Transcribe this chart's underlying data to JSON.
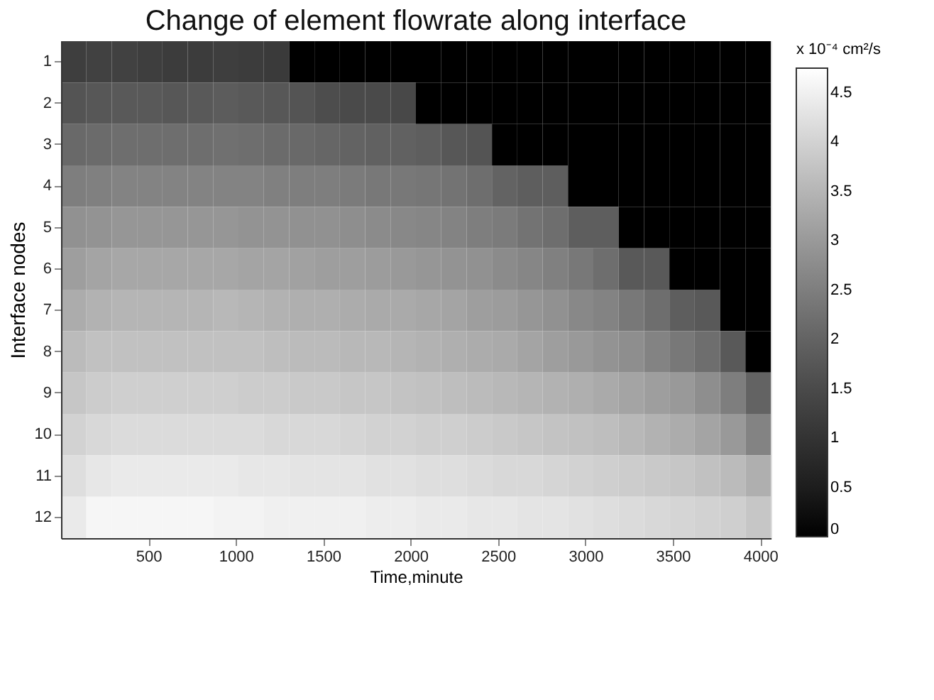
{
  "chart_data": {
    "type": "heatmap",
    "title": "Change of element flowrate along interface",
    "xlabel": "Time,minute",
    "ylabel": "Interface nodes",
    "clabel": "x 10⁻⁴ cm²/s",
    "x": [
      72.5,
      217.5,
      362.5,
      507.5,
      652.5,
      797.5,
      942.5,
      1087.5,
      1232.5,
      1377.5,
      1522.5,
      1667.5,
      1812.5,
      1957.5,
      2102.5,
      2247.5,
      2392.5,
      2537.5,
      2682.5,
      2827.5,
      2972.5,
      3117.5,
      3262.5,
      3407.5,
      3552.5,
      3697.5,
      3842.5,
      3987.5
    ],
    "xlim": [
      0,
      4060
    ],
    "xticks": [
      500,
      1000,
      1500,
      2000,
      2500,
      3000,
      3500,
      4000
    ],
    "y_categories": [
      "1",
      "2",
      "3",
      "4",
      "5",
      "6",
      "7",
      "8",
      "9",
      "10",
      "11",
      "12"
    ],
    "clim": [
      0,
      4.75
    ],
    "cticks": [
      0,
      0.5,
      1,
      1.5,
      2,
      2.5,
      3,
      3.5,
      4,
      4.5
    ],
    "grid": false,
    "cells": [
      [
        1.25,
        1.3,
        1.3,
        1.25,
        1.2,
        1.2,
        1.25,
        1.2,
        1.15,
        0,
        0,
        0,
        0,
        0,
        0,
        0,
        0,
        0,
        0,
        0,
        0,
        0,
        0,
        0,
        0,
        0,
        0,
        0
      ],
      [
        1.7,
        1.75,
        1.8,
        1.8,
        1.75,
        1.8,
        1.85,
        1.8,
        1.75,
        1.7,
        1.55,
        1.5,
        1.5,
        1.45,
        0,
        0,
        0,
        0,
        0,
        0,
        0,
        0,
        0,
        0,
        0,
        0,
        0,
        0
      ],
      [
        2.1,
        2.15,
        2.2,
        2.2,
        2.2,
        2.2,
        2.25,
        2.2,
        2.15,
        2.1,
        2.05,
        2.0,
        1.95,
        1.95,
        1.9,
        1.75,
        1.7,
        0,
        0,
        0,
        0,
        0,
        0,
        0,
        0,
        0,
        0,
        0
      ],
      [
        2.5,
        2.55,
        2.6,
        2.6,
        2.6,
        2.6,
        2.6,
        2.6,
        2.55,
        2.5,
        2.5,
        2.45,
        2.4,
        2.4,
        2.35,
        2.3,
        2.2,
        2.0,
        1.9,
        1.9,
        0,
        0,
        0,
        0,
        0,
        0,
        0,
        0
      ],
      [
        2.85,
        2.9,
        2.95,
        2.95,
        2.95,
        2.95,
        2.95,
        2.9,
        2.9,
        2.85,
        2.85,
        2.8,
        2.75,
        2.7,
        2.65,
        2.6,
        2.5,
        2.45,
        2.3,
        2.2,
        1.9,
        1.9,
        0,
        0,
        0,
        0,
        0,
        0
      ],
      [
        3.1,
        3.2,
        3.25,
        3.25,
        3.25,
        3.25,
        3.25,
        3.2,
        3.2,
        3.15,
        3.1,
        3.1,
        3.05,
        3.0,
        2.95,
        2.9,
        2.85,
        2.75,
        2.65,
        2.55,
        2.4,
        2.2,
        1.8,
        1.8,
        0,
        0,
        0,
        0
      ],
      [
        3.35,
        3.45,
        3.5,
        3.5,
        3.5,
        3.5,
        3.55,
        3.5,
        3.45,
        3.4,
        3.4,
        3.35,
        3.3,
        3.3,
        3.25,
        3.2,
        3.1,
        3.05,
        2.95,
        2.85,
        2.7,
        2.6,
        2.4,
        2.2,
        1.9,
        1.8,
        0,
        0
      ],
      [
        3.6,
        3.7,
        3.7,
        3.7,
        3.7,
        3.7,
        3.7,
        3.7,
        3.65,
        3.6,
        3.6,
        3.55,
        3.55,
        3.5,
        3.45,
        3.4,
        3.35,
        3.3,
        3.2,
        3.1,
        3.0,
        2.9,
        2.8,
        2.6,
        2.4,
        2.2,
        1.8,
        0
      ],
      [
        3.8,
        3.9,
        3.95,
        3.95,
        3.95,
        3.95,
        3.95,
        3.9,
        3.9,
        3.85,
        3.85,
        3.8,
        3.8,
        3.75,
        3.7,
        3.65,
        3.6,
        3.55,
        3.5,
        3.45,
        3.4,
        3.3,
        3.2,
        3.1,
        3.0,
        2.8,
        2.5,
        2.0
      ],
      [
        4.0,
        4.1,
        4.15,
        4.15,
        4.15,
        4.15,
        4.15,
        4.15,
        4.1,
        4.1,
        4.1,
        4.05,
        4.0,
        4.0,
        3.95,
        3.95,
        3.9,
        3.85,
        3.8,
        3.75,
        3.7,
        3.65,
        3.55,
        3.45,
        3.35,
        3.2,
        3.0,
        2.6
      ],
      [
        4.2,
        4.35,
        4.4,
        4.4,
        4.4,
        4.4,
        4.4,
        4.35,
        4.35,
        4.3,
        4.3,
        4.3,
        4.25,
        4.25,
        4.2,
        4.2,
        4.15,
        4.1,
        4.1,
        4.05,
        4.0,
        3.95,
        3.9,
        3.85,
        3.8,
        3.7,
        3.6,
        3.4
      ],
      [
        4.4,
        4.6,
        4.6,
        4.6,
        4.6,
        4.6,
        4.55,
        4.55,
        4.5,
        4.5,
        4.5,
        4.5,
        4.45,
        4.45,
        4.4,
        4.4,
        4.35,
        4.35,
        4.3,
        4.3,
        4.25,
        4.2,
        4.15,
        4.1,
        4.05,
        4.0,
        3.95,
        3.8
      ]
    ]
  }
}
